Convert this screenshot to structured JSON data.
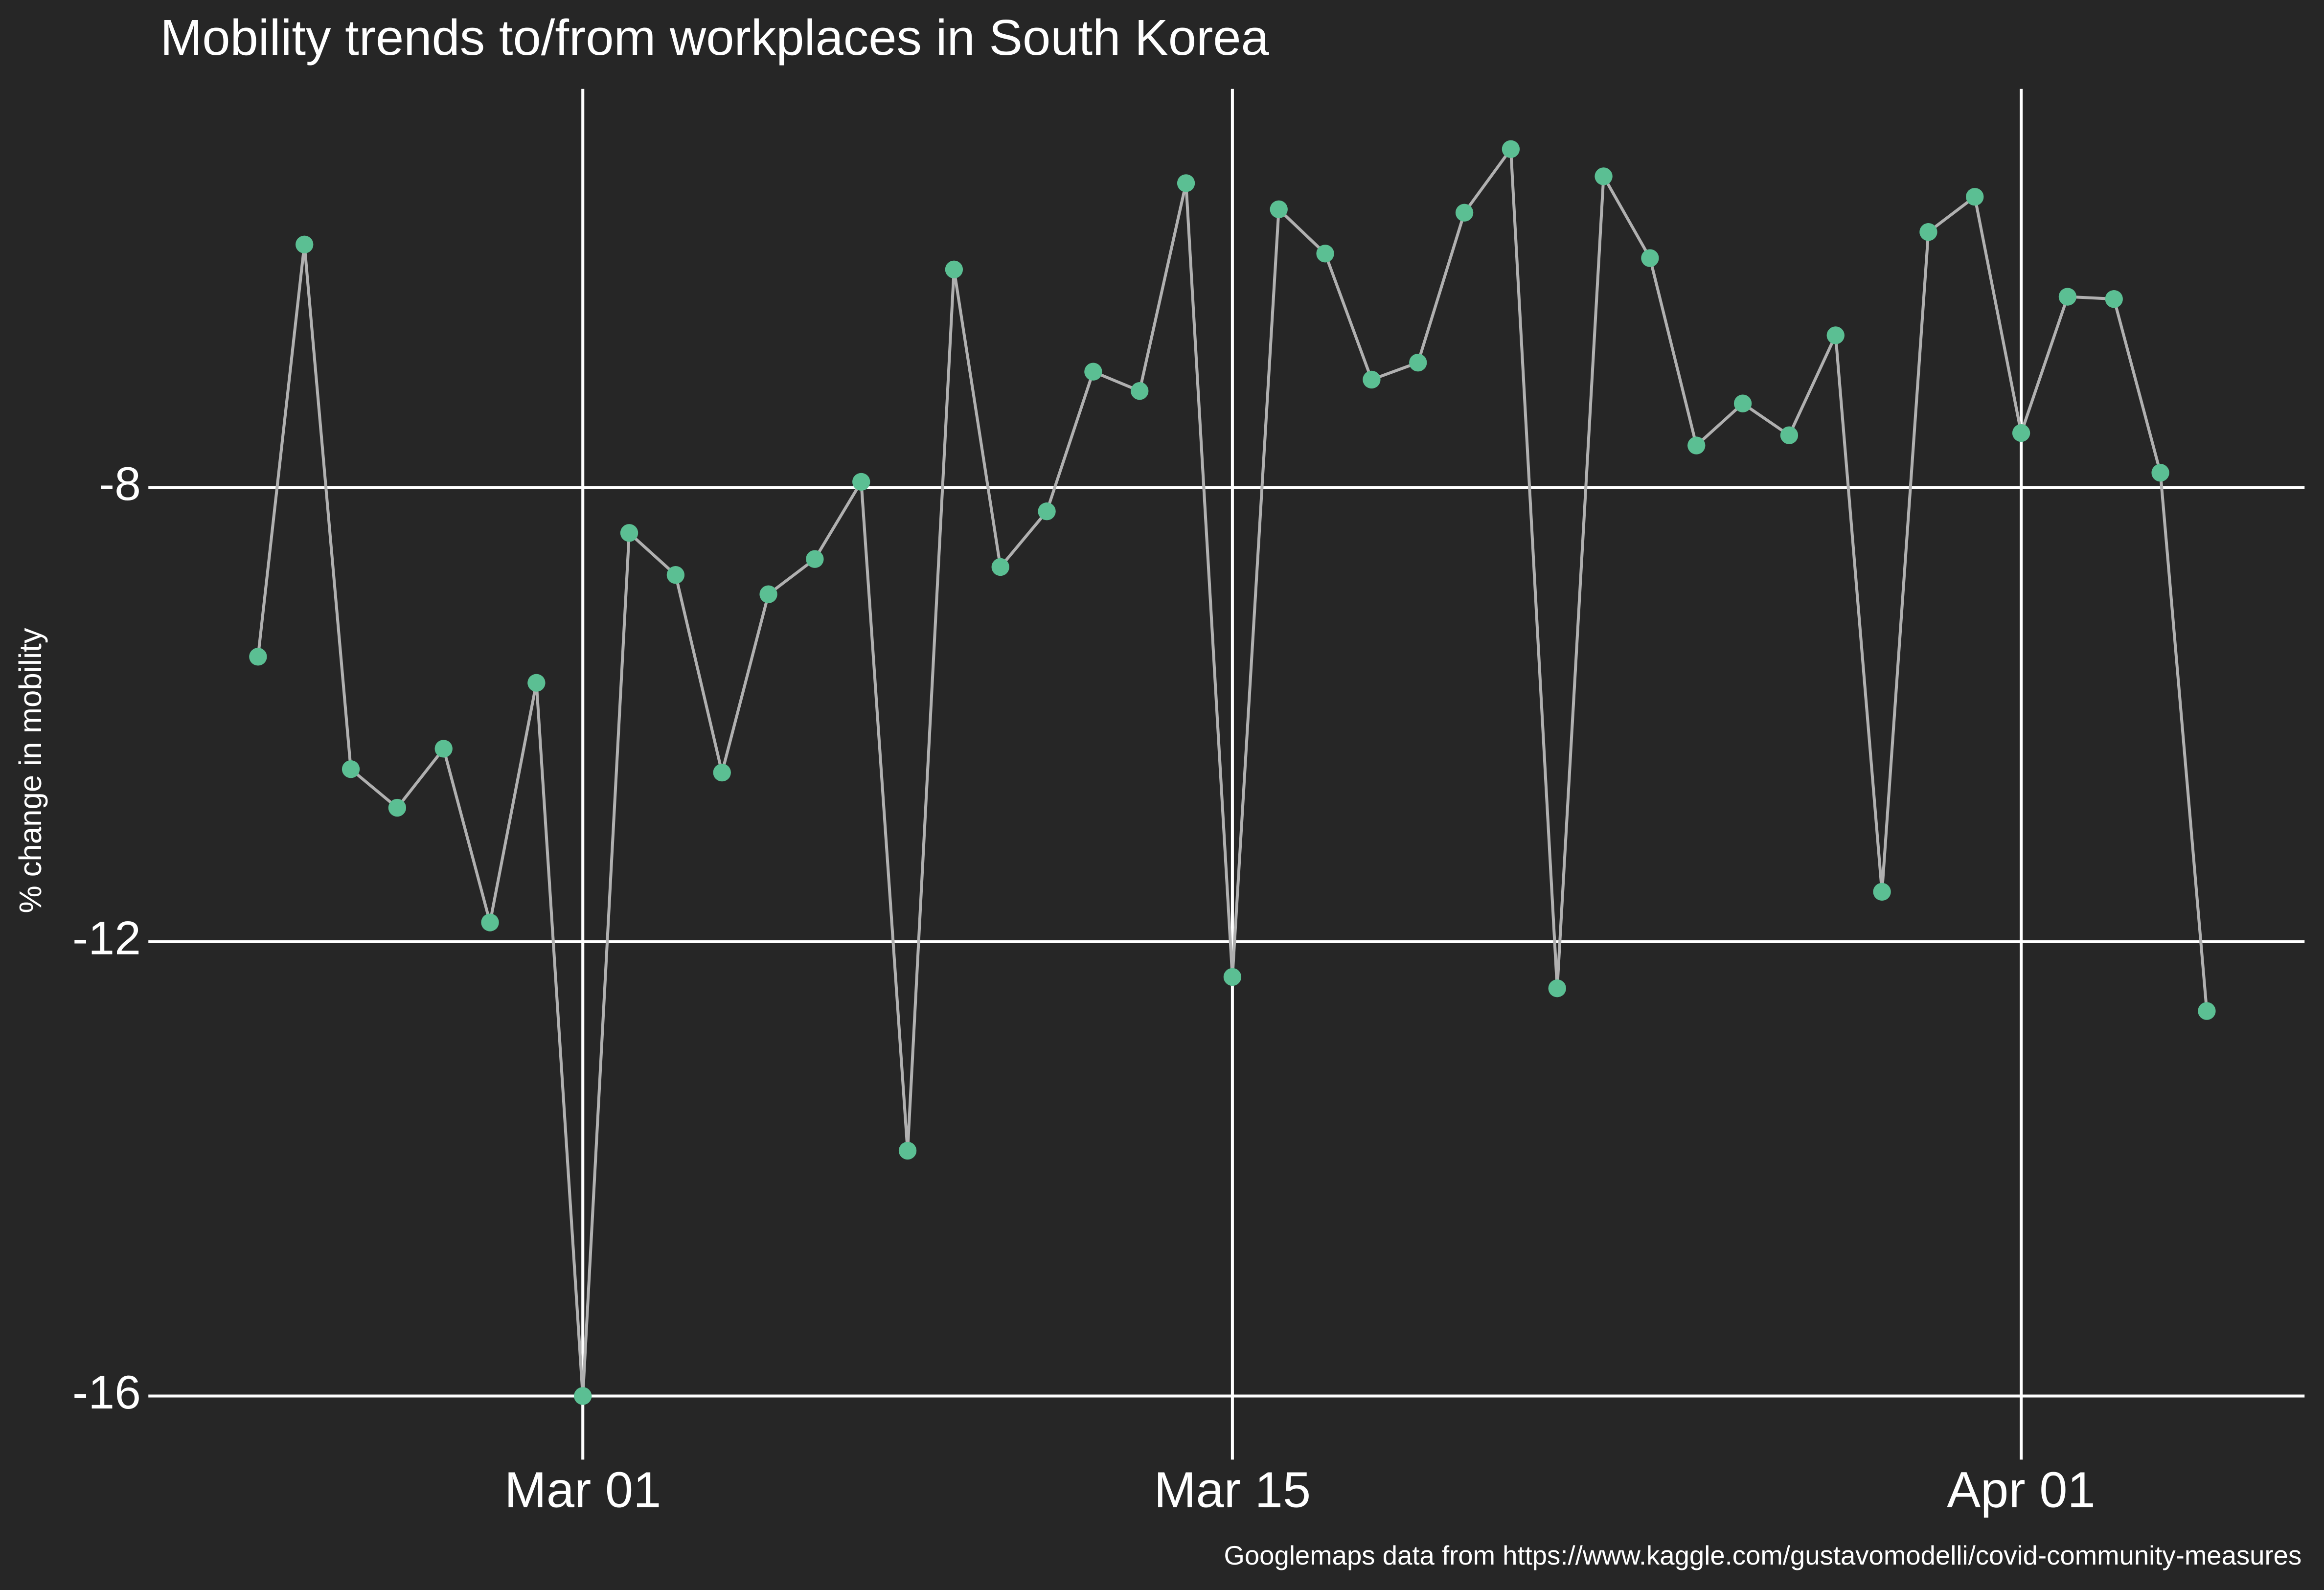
{
  "chart_data": {
    "type": "line",
    "title": "Mobility trends to/from workplaces in South Korea",
    "y_label": "% change in mobility",
    "caption": "Googlemaps data from https://www.kaggle.com/gustavomodelli/covid-community-measures",
    "x": [
      "Feb 23",
      "Feb 24",
      "Feb 25",
      "Feb 26",
      "Feb 27",
      "Feb 28",
      "Feb 29",
      "Mar 01",
      "Mar 02",
      "Mar 03",
      "Mar 04",
      "Mar 05",
      "Mar 06",
      "Mar 07",
      "Mar 08",
      "Mar 09",
      "Mar 10",
      "Mar 11",
      "Mar 12",
      "Mar 13",
      "Mar 14",
      "Mar 15",
      "Mar 16",
      "Mar 17",
      "Mar 18",
      "Mar 19",
      "Mar 20",
      "Mar 21",
      "Mar 22",
      "Mar 23",
      "Mar 24",
      "Mar 25",
      "Mar 26",
      "Mar 27",
      "Mar 28",
      "Mar 29",
      "Mar 30",
      "Mar 31",
      "Apr 01",
      "Apr 02",
      "Apr 03",
      "Apr 04",
      "Apr 05"
    ],
    "series": [
      {
        "name": "workplaces",
        "line_color": "#b0b0b0",
        "color": "#5bbf93",
        "values": [
          -9.49,
          -5.86,
          -10.48,
          -10.82,
          -10.3,
          -11.83,
          -9.72,
          -16.0,
          -8.4,
          -8.77,
          -10.51,
          -8.94,
          -8.63,
          -7.95,
          -13.84,
          -6.08,
          -8.7,
          -8.21,
          -6.98,
          -7.15,
          -5.32,
          -12.31,
          -5.55,
          -5.94,
          -7.05,
          -6.9,
          -5.58,
          -5.02,
          -12.41,
          -5.26,
          -5.98,
          -7.63,
          -7.26,
          -7.54,
          -6.66,
          -11.56,
          -5.75,
          -5.44,
          -7.52,
          -6.32,
          -6.34,
          -7.87,
          -12.61
        ]
      }
    ],
    "xticks": [
      "Mar 01",
      "Mar 15",
      "Apr 01"
    ],
    "ylim": [
      -16.56,
      -4.49
    ],
    "yticks": [
      -16,
      -12,
      -8
    ],
    "grid": true
  }
}
